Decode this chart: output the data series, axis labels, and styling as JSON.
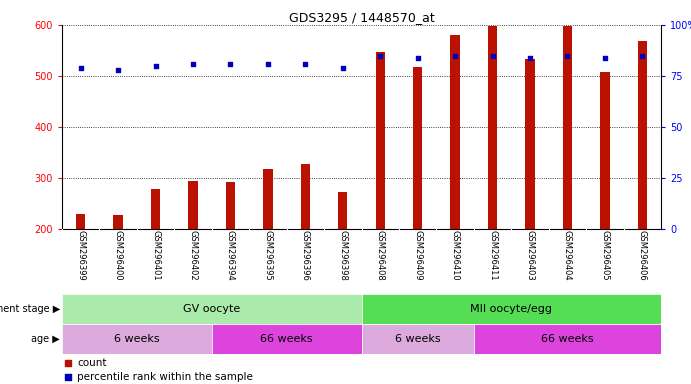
{
  "title": "GDS3295 / 1448570_at",
  "samples": [
    "GSM296399",
    "GSM296400",
    "GSM296401",
    "GSM296402",
    "GSM296394",
    "GSM296395",
    "GSM296396",
    "GSM296398",
    "GSM296408",
    "GSM296409",
    "GSM296410",
    "GSM296411",
    "GSM296403",
    "GSM296404",
    "GSM296405",
    "GSM296406"
  ],
  "counts": [
    230,
    228,
    278,
    295,
    292,
    318,
    327,
    272,
    547,
    517,
    580,
    598,
    533,
    598,
    508,
    568
  ],
  "percentiles": [
    79,
    78,
    80,
    81,
    81,
    81,
    81,
    79,
    85,
    84,
    85,
    85,
    84,
    85,
    84,
    85
  ],
  "ylim_left": [
    200,
    600
  ],
  "ylim_right": [
    0,
    100
  ],
  "yticks_left": [
    200,
    300,
    400,
    500,
    600
  ],
  "yticks_right": [
    0,
    25,
    50,
    75,
    100
  ],
  "bar_color": "#bb1100",
  "dot_color": "#0000bb",
  "bg_color": "#ffffff",
  "sample_bg_color": "#cccccc",
  "dev_stage_groups": [
    {
      "label": "GV oocyte",
      "start": 0,
      "end": 8,
      "color": "#aaeaaa"
    },
    {
      "label": "MII oocyte/egg",
      "start": 8,
      "end": 16,
      "color": "#55dd55"
    }
  ],
  "age_groups": [
    {
      "label": "6 weeks",
      "start": 0,
      "end": 4,
      "color": "#ddaadd"
    },
    {
      "label": "66 weeks",
      "start": 4,
      "end": 8,
      "color": "#dd44dd"
    },
    {
      "label": "6 weeks",
      "start": 8,
      "end": 11,
      "color": "#ddaadd"
    },
    {
      "label": "66 weeks",
      "start": 11,
      "end": 16,
      "color": "#dd44dd"
    }
  ],
  "legend_count_label": "count",
  "legend_pct_label": "percentile rank within the sample",
  "dev_stage_label": "development stage",
  "age_label": "age"
}
